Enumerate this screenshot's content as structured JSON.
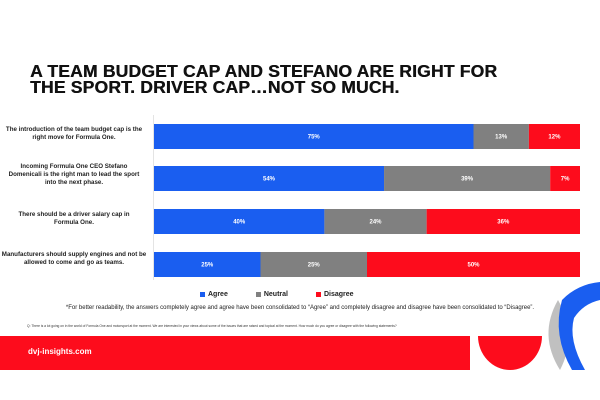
{
  "title": {
    "line1": "A TEAM BUDGET CAP AND STEFANO ARE RIGHT FOR",
    "line2": "THE SPORT.  DRIVER CAP…NOT SO MUCH."
  },
  "colors": {
    "agree": "#1a5ef0",
    "neutral": "#808080",
    "disagree": "#fd0c1c",
    "footer": "#fd0c1c",
    "deco_gray": "#c0c0c0"
  },
  "legend": {
    "agree": "Agree",
    "neutral": "Neutral",
    "disagree": "Disagree"
  },
  "note": "*For better readability, the answers completely agree and agree have been consolidated to “Agree” and completely disagree and disagree have been consolidated to “Disagree”.",
  "question": "Q: There is a lot going on in the world of Formula One and motorsport at the moment.  We are interested in your views about some of the issues that are raised and topical at the moment. How much do you agree or disagree with the following statements?",
  "footer": {
    "site": "dvj-insights.com"
  },
  "chart_data": {
    "type": "bar",
    "orientation": "horizontal",
    "stacked": true,
    "title": "A TEAM BUDGET CAP AND STEFANO ARE RIGHT FOR THE SPORT.  DRIVER CAP…NOT SO MUCH.",
    "xlabel": "",
    "ylabel": "",
    "xlim": [
      0,
      100
    ],
    "unit": "%",
    "grid": false,
    "legend_position": "bottom",
    "categories": [
      "The introduction of the team budget cap is the right move for Formula One.",
      "Incoming Formula One CEO Stefano Domenicali is the right man to lead the sport into the next phase.",
      "There should be a driver salary cap in Formula One.",
      "Manufacturers should supply engines and not be allowed to come and go as teams."
    ],
    "series": [
      {
        "name": "Agree",
        "values": [
          75,
          54,
          40,
          25
        ]
      },
      {
        "name": "Neutral",
        "values": [
          13,
          39,
          24,
          25
        ]
      },
      {
        "name": "Disagree",
        "values": [
          12,
          7,
          36,
          50
        ]
      }
    ]
  }
}
